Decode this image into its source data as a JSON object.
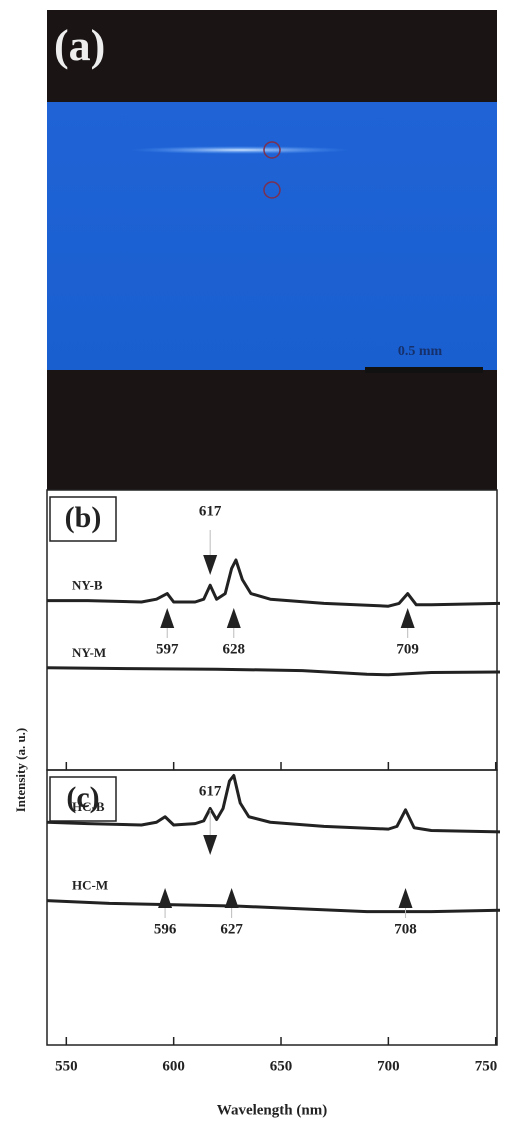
{
  "panel_a": {
    "label": "(a)",
    "scale_bar": "0.5 mm"
  },
  "ylabel": "Intensity (a. u.)",
  "chart_data": [
    {
      "type": "line",
      "panel_label": "(b)",
      "xlim": [
        541,
        752
      ],
      "ylim": [
        0,
        10
      ],
      "xticks": [
        550,
        600,
        650,
        700,
        750
      ],
      "series": [
        {
          "name": "NY-B",
          "color": "#222222",
          "x": [
            541,
            560,
            585,
            592,
            597,
            600,
            610,
            614,
            617,
            620,
            624,
            627,
            629,
            632,
            636,
            645,
            670,
            700,
            705,
            709,
            713,
            720,
            752
          ],
          "values": [
            6.05,
            6.05,
            6.0,
            6.1,
            6.3,
            6.0,
            6.0,
            6.1,
            6.6,
            6.1,
            6.3,
            7.2,
            7.5,
            6.8,
            6.3,
            6.1,
            5.95,
            5.85,
            5.95,
            6.3,
            5.9,
            5.9,
            5.95
          ]
        },
        {
          "name": "NY-M",
          "color": "#222222",
          "x": [
            541,
            580,
            620,
            660,
            690,
            700,
            720,
            752
          ],
          "values": [
            3.65,
            3.62,
            3.6,
            3.55,
            3.42,
            3.4,
            3.48,
            3.5
          ]
        }
      ],
      "annotations": [
        {
          "label": "617",
          "direction": "down"
        },
        {
          "label": "597",
          "direction": "up"
        },
        {
          "label": "628",
          "direction": "up"
        },
        {
          "label": "709",
          "direction": "up"
        }
      ]
    },
    {
      "type": "line",
      "panel_label": "(c)",
      "xlim": [
        541,
        752
      ],
      "ylim": [
        0,
        10
      ],
      "xticks": [
        550,
        600,
        650,
        700,
        750
      ],
      "xlabel": "Wavelength (nm)",
      "series": [
        {
          "name": "HC-B",
          "color": "#222222",
          "x": [
            541,
            560,
            585,
            592,
            596,
            600,
            610,
            614,
            617,
            620,
            623,
            626,
            628,
            631,
            635,
            645,
            670,
            700,
            704,
            708,
            712,
            720,
            752
          ],
          "values": [
            8.1,
            8.05,
            8.0,
            8.1,
            8.3,
            8.0,
            8.05,
            8.15,
            8.6,
            8.2,
            8.6,
            9.6,
            9.8,
            8.8,
            8.3,
            8.1,
            7.95,
            7.85,
            7.95,
            8.55,
            7.9,
            7.8,
            7.75
          ]
        },
        {
          "name": "HC-M",
          "color": "#222222",
          "x": [
            541,
            570,
            600,
            630,
            660,
            690,
            720,
            752
          ],
          "values": [
            5.25,
            5.15,
            5.1,
            5.05,
            4.95,
            4.85,
            4.85,
            4.9
          ]
        }
      ],
      "annotations": [
        {
          "label": "617",
          "direction": "down"
        },
        {
          "label": "596",
          "direction": "up"
        },
        {
          "label": "627",
          "direction": "up"
        },
        {
          "label": "708",
          "direction": "up"
        }
      ]
    }
  ]
}
